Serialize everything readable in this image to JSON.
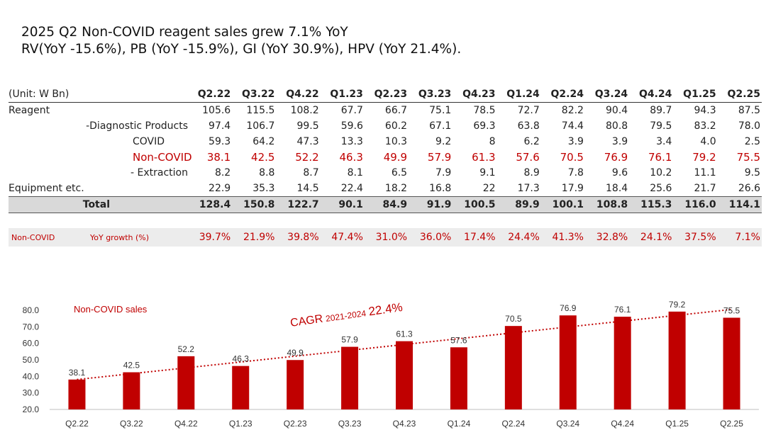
{
  "headline": {
    "line1": "2025 Q2 Non-COVID reagent sales grew 7.1% YoY",
    "line2": "RV(YoY -15.6%), PB (YoY -15.9%), GI (YoY 30.9%), HPV (YoY 21.4%)."
  },
  "table": {
    "unit_label": "(Unit: W Bn)",
    "periods": [
      "Q2.22",
      "Q3.22",
      "Q4.22",
      "Q1.23",
      "Q2.23",
      "Q3.23",
      "Q4.23",
      "Q1.24",
      "Q2.24",
      "Q3.24",
      "Q4.24",
      "Q1.25",
      "Q2.25"
    ],
    "rows": [
      {
        "label": "Reagent",
        "label2": "",
        "values": [
          "105.6",
          "115.5",
          "108.2",
          "67.7",
          "66.7",
          "75.1",
          "78.5",
          "72.7",
          "82.2",
          "90.4",
          "89.7",
          "94.3",
          "87.5"
        ]
      },
      {
        "label": "-Diagnostic",
        "label2": "Products",
        "values": [
          "97.4",
          "106.7",
          "99.5",
          "59.6",
          "60.2",
          "67.1",
          "69.3",
          "63.8",
          "74.4",
          "80.8",
          "79.5",
          "83.2",
          "78.0"
        ]
      },
      {
        "label": "",
        "label2": "COVID",
        "values": [
          "59.3",
          "64.2",
          "47.3",
          "13.3",
          "10.3",
          "9.2",
          "8",
          "6.2",
          "3.9",
          "3.9",
          "3.4",
          "4.0",
          "2.5"
        ]
      },
      {
        "label": "",
        "label2": "Non-COVID",
        "values": [
          "38.1",
          "42.5",
          "52.2",
          "46.3",
          "49.9",
          "57.9",
          "61.3",
          "57.6",
          "70.5",
          "76.9",
          "76.1",
          "79.2",
          "75.5"
        ]
      },
      {
        "label": "- Extraction",
        "label2": "",
        "values": [
          "8.2",
          "8.8",
          "8.7",
          "8.1",
          "6.5",
          "7.9",
          "9.1",
          "8.9",
          "7.8",
          "9.6",
          "10.2",
          "11.1",
          "9.5"
        ]
      },
      {
        "label": "Equipment etc.",
        "label2": "",
        "values": [
          "22.9",
          "35.3",
          "14.5",
          "22.4",
          "18.2",
          "16.8",
          "22",
          "17.3",
          "17.9",
          "18.4",
          "25.6",
          "21.7",
          "26.6"
        ]
      }
    ],
    "total": {
      "label": "Total",
      "values": [
        "128.4",
        "150.8",
        "122.7",
        "90.1",
        "84.9",
        "91.9",
        "100.5",
        "89.9",
        "100.1",
        "108.8",
        "115.3",
        "116.0",
        "114.1"
      ]
    },
    "yoy": {
      "label": "Non-COVID",
      "label2": "YoY growth (%)",
      "values": [
        "39.7%",
        "21.9%",
        "39.8%",
        "47.4%",
        "31.0%",
        "36.0%",
        "17.4%",
        "24.4%",
        "41.3%",
        "32.8%",
        "24.1%",
        "37.5%",
        "7.1%"
      ]
    }
  },
  "colors": {
    "accent": "#c00000",
    "grid": "#d9d9d9"
  },
  "chart_data": {
    "type": "bar",
    "title": "Non-COVID sales",
    "categories": [
      "Q2.22",
      "Q3.22",
      "Q4.22",
      "Q1.23",
      "Q2.23",
      "Q3.23",
      "Q4.23",
      "Q1.24",
      "Q2.24",
      "Q3.24",
      "Q4.24",
      "Q1.25",
      "Q2.25"
    ],
    "values": [
      38.1,
      42.5,
      52.2,
      46.3,
      49.9,
      57.9,
      61.3,
      57.6,
      70.5,
      76.9,
      76.1,
      79.2,
      75.5
    ],
    "ylim": [
      20,
      80
    ],
    "yticks": [
      "20.0",
      "30.0",
      "40.0",
      "50.0",
      "60.0",
      "70.0",
      "80.0"
    ],
    "trendline": {
      "style": "dotted",
      "from": 38.1,
      "to": 80.5
    },
    "annotation": {
      "prefix": "CAGR",
      "period": "2021-2024",
      "value": "22.4%"
    },
    "bar_color": "#c00000"
  }
}
